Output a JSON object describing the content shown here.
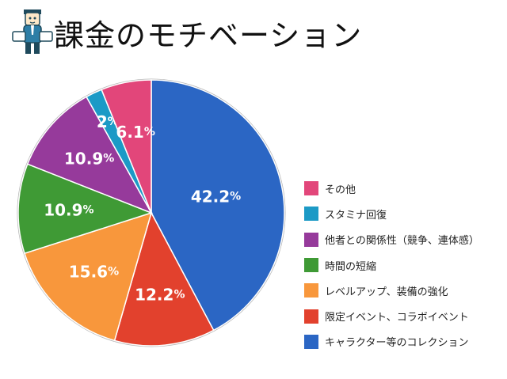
{
  "header": {
    "title": "課金のモチベーション",
    "mascot_icon": "businessman-mascot-icon"
  },
  "chart_data": {
    "type": "pie",
    "title": "課金のモチベーション",
    "slices": [
      {
        "label": "キャラクター等のコレクション",
        "value": 42.2,
        "display": "42.2",
        "color": "#2b66c4"
      },
      {
        "label": "限定イベント、コラボイベント",
        "value": 12.2,
        "display": "12.2",
        "color": "#e2412d"
      },
      {
        "label": "レベルアップ、装備の強化",
        "value": 15.6,
        "display": "15.6",
        "color": "#f8973c"
      },
      {
        "label": "時間の短縮",
        "value": 10.9,
        "display": "10.9",
        "color": "#3f9a35"
      },
      {
        "label": "他者との関係性（競争、連体感）",
        "value": 10.9,
        "display": "10.9",
        "color": "#963a9b"
      },
      {
        "label": "スタミナ回復",
        "value": 2,
        "display": "2",
        "color": "#1c9ac6"
      },
      {
        "label": "その他",
        "value": 6.1,
        "display": "6.1",
        "color": "#e2467a"
      }
    ],
    "unit": "%",
    "legend_placement": "right",
    "legend_order": [
      6,
      5,
      4,
      3,
      2,
      1,
      0
    ]
  }
}
